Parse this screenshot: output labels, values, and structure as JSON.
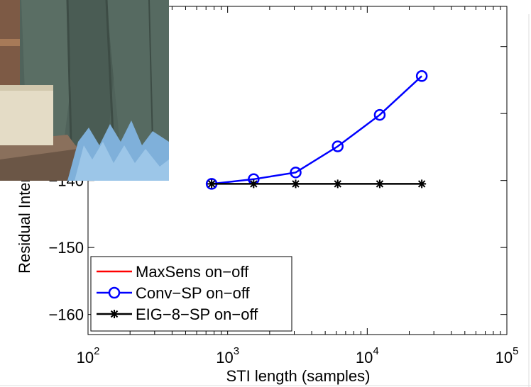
{
  "chart_data": {
    "type": "line",
    "xscale": "log",
    "xlim": [
      100,
      100000
    ],
    "ylim": [
      -163,
      -114
    ],
    "grid": false,
    "xlabel": "STI length (samples)",
    "ylabel": "Residual Inter",
    "xticks": [
      {
        "value": 100,
        "base": "10",
        "exp": "2"
      },
      {
        "value": 1000,
        "base": "10",
        "exp": "3"
      },
      {
        "value": 10000,
        "base": "10",
        "exp": "4"
      },
      {
        "value": 100000,
        "base": "10",
        "exp": "5"
      }
    ],
    "yticks": [
      {
        "value": -160,
        "label": "−160"
      },
      {
        "value": -150,
        "label": "−150"
      },
      {
        "value": -140,
        "label": "−140"
      }
    ],
    "legend_position": "bottom-left",
    "series": [
      {
        "name": "MaxSens on−off",
        "color": "#ff0000",
        "marker": "none",
        "x": [],
        "y": []
      },
      {
        "name": "Conv−SP on−off",
        "color": "#0000ff",
        "marker": "circle",
        "x": [
          768,
          1536,
          3072,
          6144,
          12288,
          24576
        ],
        "y": [
          -140.5,
          -139.8,
          -138.8,
          -134.9,
          -130.2,
          -124.4
        ]
      },
      {
        "name": "EIG−8−SP on−off",
        "color": "#000000",
        "marker": "asterisk",
        "x": [
          768,
          1536,
          3072,
          6144,
          12288,
          24576
        ],
        "y": [
          -140.5,
          -140.5,
          -140.5,
          -140.5,
          -140.5,
          -140.5
        ]
      }
    ]
  }
}
